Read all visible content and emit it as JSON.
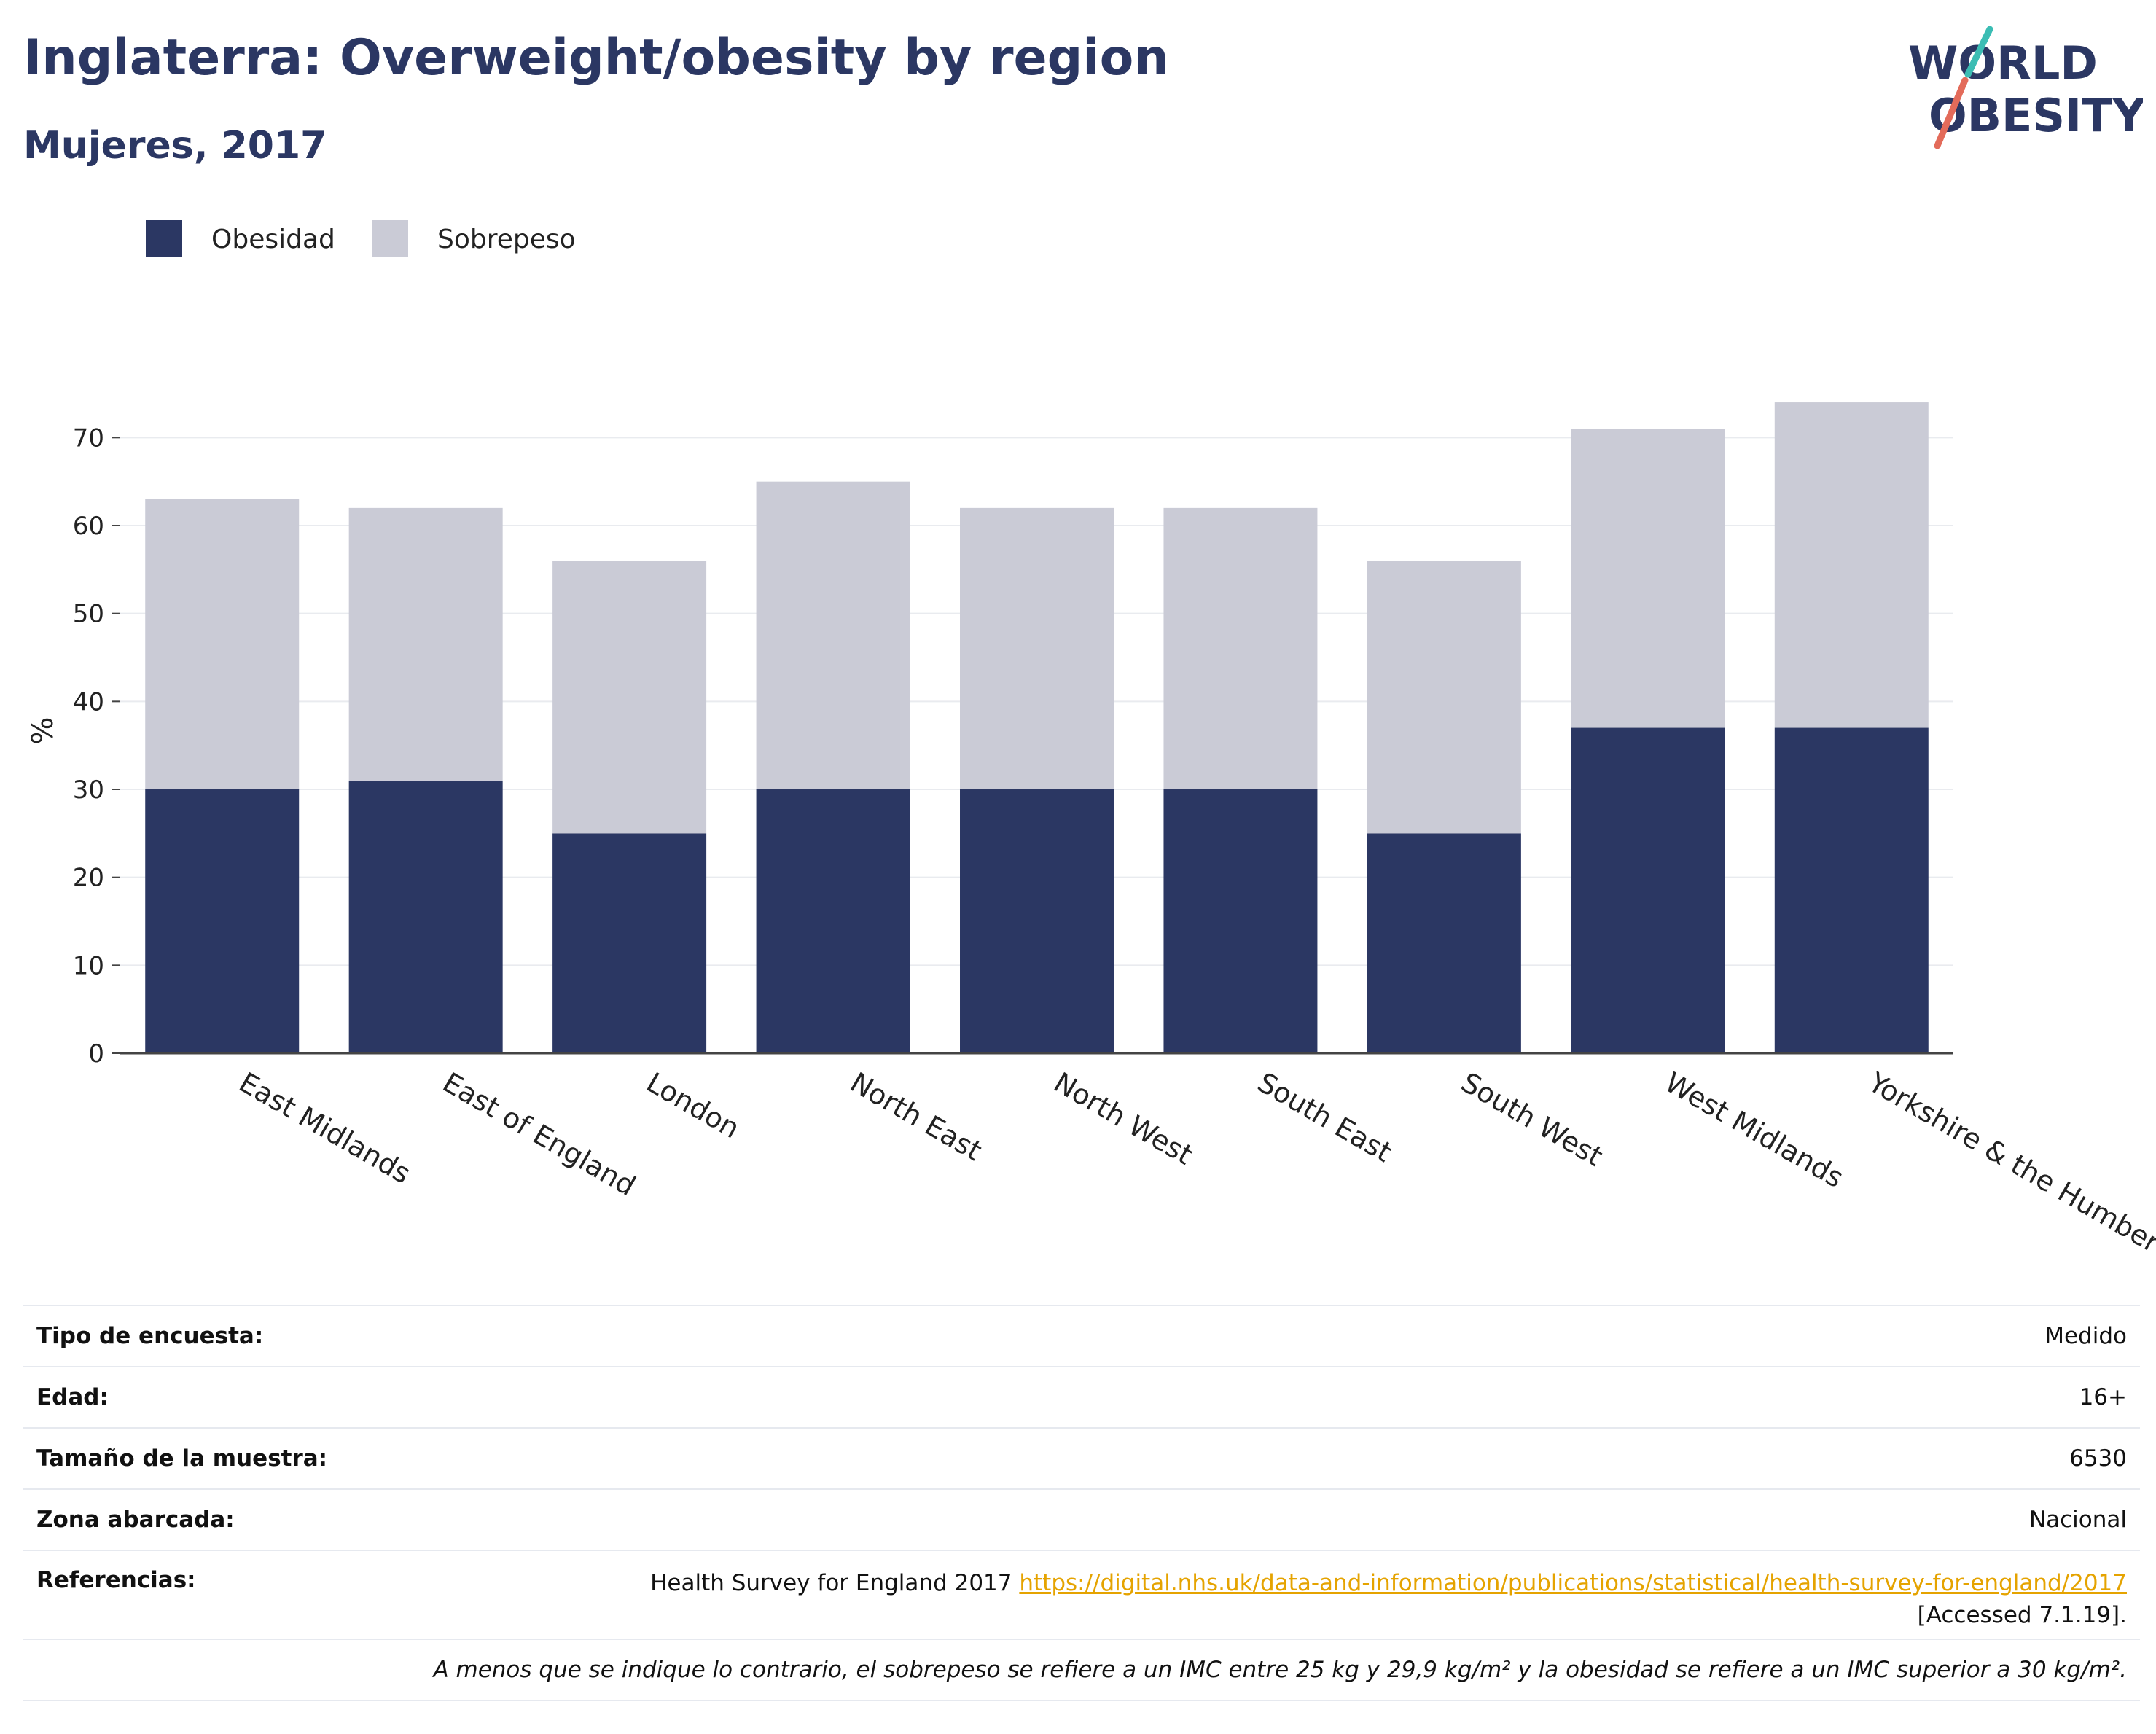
{
  "header": {
    "title": "Inglaterra: Overweight/obesity by region",
    "subtitle": "Mujeres, 2017"
  },
  "logo": {
    "line1": "WORLD",
    "line2": "OBESITY"
  },
  "chart_data": {
    "type": "bar",
    "stacked": true,
    "categories": [
      "East Midlands",
      "East of England",
      "London",
      "North East",
      "North West",
      "South East",
      "South West",
      "West Midlands",
      "Yorkshire & the Humber"
    ],
    "series": [
      {
        "name": "Obesidad",
        "color": "#2b3763",
        "values": [
          30,
          31,
          25,
          30,
          30,
          30,
          25,
          37,
          37
        ]
      },
      {
        "name": "Sobrepeso",
        "color": "#cacbd6",
        "values": [
          33,
          31,
          31,
          35,
          32,
          32,
          31,
          34,
          37
        ]
      }
    ],
    "ylabel": "%",
    "ylim": [
      0,
      75
    ],
    "yticks": [
      0,
      10,
      20,
      30,
      40,
      50,
      60,
      70
    ],
    "grid": true,
    "legend_position": "top-left"
  },
  "info": {
    "rows": [
      {
        "key": "Tipo de encuesta:",
        "value": "Medido"
      },
      {
        "key": "Edad:",
        "value": "16+"
      },
      {
        "key": "Tamaño de la muestra:",
        "value": "6530"
      },
      {
        "key": "Zona abarcada:",
        "value": "Nacional"
      }
    ],
    "references": {
      "key": "Referencias:",
      "text": "Health Survey for England 2017",
      "link": "https://digital.nhs.uk/data-and-information/publications/statistical/health-survey-for-england/2017",
      "accessed": "[Accessed 7.1.19]."
    },
    "note": "A menos que se indique lo contrario, el sobrepeso se refiere a un IMC entre 25 kg y 29,9 kg/m² y la obesidad se refiere a un IMC superior a 30 kg/m²."
  }
}
